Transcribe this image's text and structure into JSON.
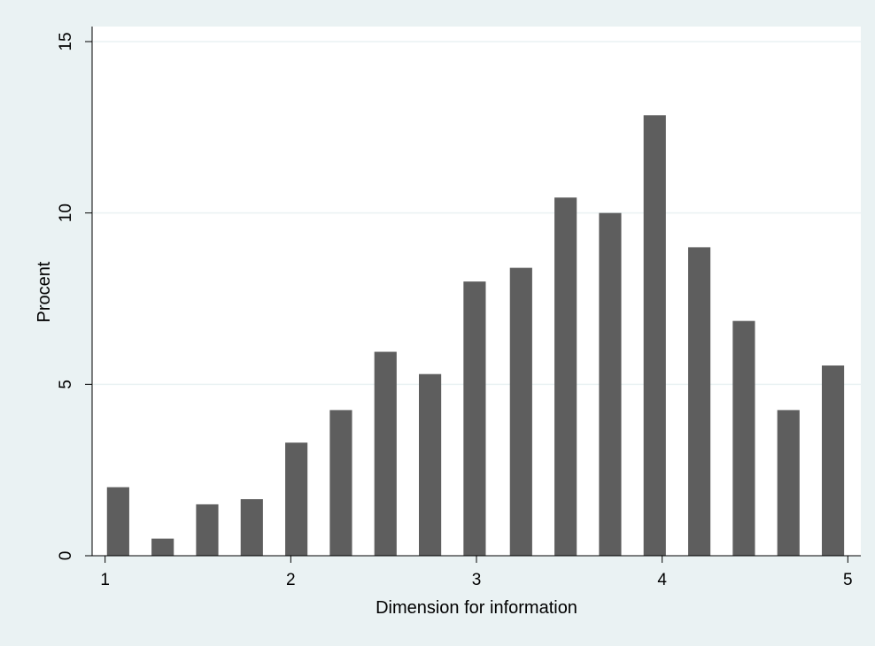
{
  "chart_data": {
    "type": "bar",
    "title": "",
    "xlabel": "Dimension for information",
    "ylabel": "Procent",
    "xlim": [
      0.93,
      5.07
    ],
    "ylim": [
      0,
      15
    ],
    "x_ticks": [
      "1",
      "2",
      "3",
      "4",
      "5"
    ],
    "y_ticks": [
      "0",
      "5",
      "10",
      "15"
    ],
    "grid": true,
    "legend": "none",
    "bar_width": 0.12,
    "colors": {
      "bar": "#5e5e5e",
      "plot_background": "#ffffff",
      "outer_background": "#eaf2f3",
      "gridline": "#eaf2f3"
    },
    "x": [
      1.07,
      1.31,
      1.55,
      1.79,
      2.03,
      2.27,
      2.51,
      2.75,
      2.99,
      3.24,
      3.48,
      3.72,
      3.96,
      4.2,
      4.44,
      4.68,
      4.92
    ],
    "values": [
      2.0,
      0.5,
      1.5,
      1.65,
      3.3,
      4.25,
      5.95,
      5.3,
      8.0,
      8.4,
      10.45,
      10.0,
      12.85,
      9.0,
      6.85,
      4.25,
      5.55
    ]
  }
}
